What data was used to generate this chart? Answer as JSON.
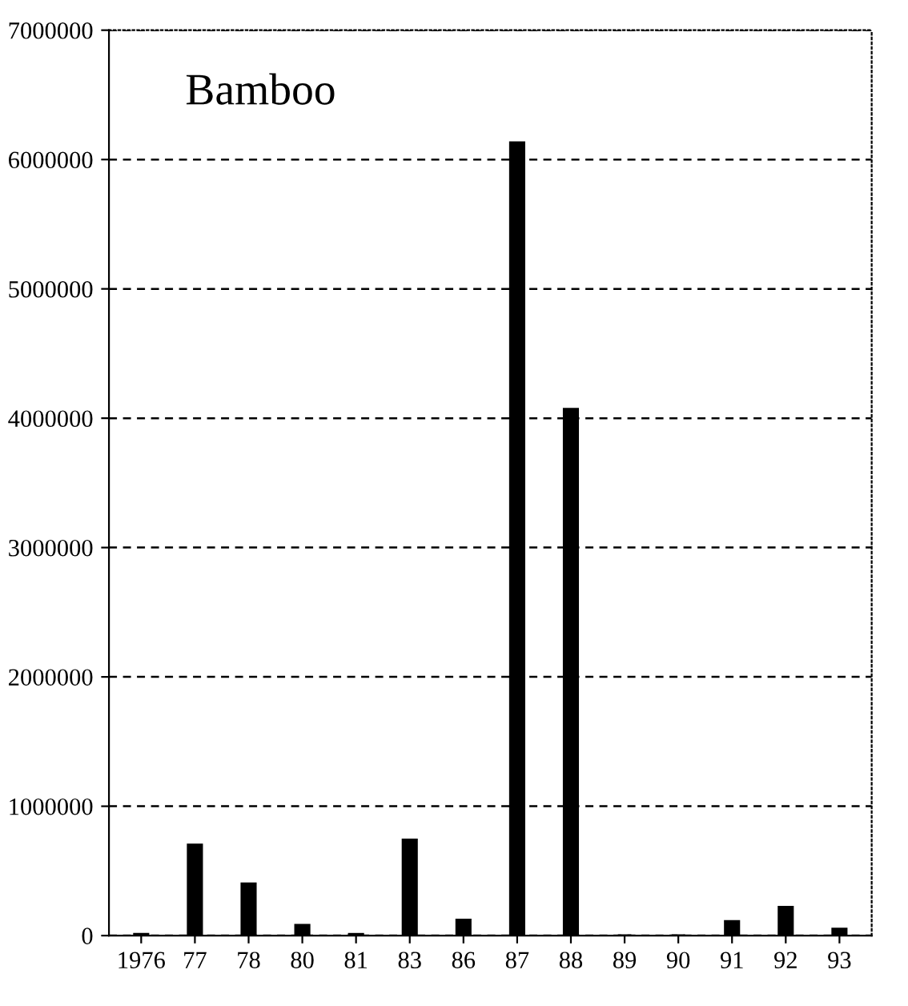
{
  "chart_data": {
    "type": "bar",
    "title": "Bamboo",
    "categories": [
      "1976",
      "77",
      "78",
      "80",
      "81",
      "83",
      "86",
      "87",
      "88",
      "89",
      "90",
      "91",
      "92",
      "93"
    ],
    "values": [
      10000,
      700000,
      400000,
      80000,
      10000,
      740000,
      120000,
      6130000,
      4070000,
      0,
      0,
      110000,
      220000,
      50000
    ],
    "color": "#000000",
    "ylim": [
      0,
      7000000
    ],
    "yticks": [
      0,
      1000000,
      2000000,
      3000000,
      4000000,
      5000000,
      6000000,
      7000000
    ],
    "grid": "y",
    "legend": false
  }
}
